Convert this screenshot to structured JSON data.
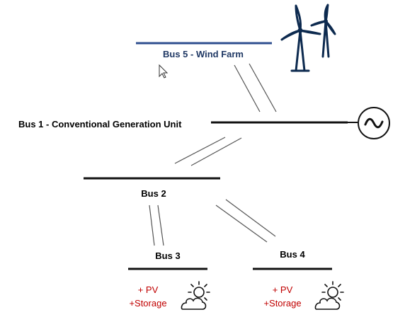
{
  "buses": {
    "bus5": {
      "label": "Bus 5 - Wind Farm",
      "color": "#1f3864",
      "line_color": "#2f4f8f"
    },
    "bus1": {
      "label": "Bus 1 - Conventional Generation Unit"
    },
    "bus2": {
      "label": "Bus 2"
    },
    "bus3": {
      "label": "Bus 3"
    },
    "bus4": {
      "label": "Bus 4"
    }
  },
  "generator": {
    "symbol": "~",
    "icon": "ac-generator-icon"
  },
  "der_bus3": {
    "line1": "+ PV",
    "line2": "+Storage",
    "icon": "partly-sunny-icon"
  },
  "der_bus4": {
    "line1": "+ PV",
    "line2": "+Storage",
    "icon": "partly-sunny-icon"
  },
  "colors": {
    "text": "#000000",
    "der_text": "#c00000",
    "wind_turbine": "#0d2a4f",
    "transmission_line": "#555555",
    "bus_bar": "#111111"
  }
}
